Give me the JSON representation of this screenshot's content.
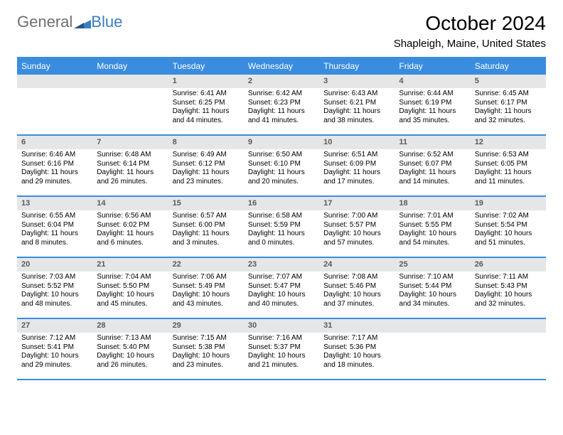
{
  "brand": {
    "general": "General",
    "blue": "Blue"
  },
  "title": "October 2024",
  "location": "Shapleigh, Maine, United States",
  "colors": {
    "header_bg": "#3a8dde",
    "header_fg": "#ffffff",
    "daynum_bg": "#e5e6e7",
    "border": "#3a8dde",
    "logo_gray": "#6d6e71",
    "logo_blue": "#3a7ebf"
  },
  "dayHeaders": [
    "Sunday",
    "Monday",
    "Tuesday",
    "Wednesday",
    "Thursday",
    "Friday",
    "Saturday"
  ],
  "weeks": [
    [
      null,
      null,
      {
        "num": "1",
        "sunrise": "Sunrise: 6:41 AM",
        "sunset": "Sunset: 6:25 PM",
        "daylight": "Daylight: 11 hours and 44 minutes."
      },
      {
        "num": "2",
        "sunrise": "Sunrise: 6:42 AM",
        "sunset": "Sunset: 6:23 PM",
        "daylight": "Daylight: 11 hours and 41 minutes."
      },
      {
        "num": "3",
        "sunrise": "Sunrise: 6:43 AM",
        "sunset": "Sunset: 6:21 PM",
        "daylight": "Daylight: 11 hours and 38 minutes."
      },
      {
        "num": "4",
        "sunrise": "Sunrise: 6:44 AM",
        "sunset": "Sunset: 6:19 PM",
        "daylight": "Daylight: 11 hours and 35 minutes."
      },
      {
        "num": "5",
        "sunrise": "Sunrise: 6:45 AM",
        "sunset": "Sunset: 6:17 PM",
        "daylight": "Daylight: 11 hours and 32 minutes."
      }
    ],
    [
      {
        "num": "6",
        "sunrise": "Sunrise: 6:46 AM",
        "sunset": "Sunset: 6:16 PM",
        "daylight": "Daylight: 11 hours and 29 minutes."
      },
      {
        "num": "7",
        "sunrise": "Sunrise: 6:48 AM",
        "sunset": "Sunset: 6:14 PM",
        "daylight": "Daylight: 11 hours and 26 minutes."
      },
      {
        "num": "8",
        "sunrise": "Sunrise: 6:49 AM",
        "sunset": "Sunset: 6:12 PM",
        "daylight": "Daylight: 11 hours and 23 minutes."
      },
      {
        "num": "9",
        "sunrise": "Sunrise: 6:50 AM",
        "sunset": "Sunset: 6:10 PM",
        "daylight": "Daylight: 11 hours and 20 minutes."
      },
      {
        "num": "10",
        "sunrise": "Sunrise: 6:51 AM",
        "sunset": "Sunset: 6:09 PM",
        "daylight": "Daylight: 11 hours and 17 minutes."
      },
      {
        "num": "11",
        "sunrise": "Sunrise: 6:52 AM",
        "sunset": "Sunset: 6:07 PM",
        "daylight": "Daylight: 11 hours and 14 minutes."
      },
      {
        "num": "12",
        "sunrise": "Sunrise: 6:53 AM",
        "sunset": "Sunset: 6:05 PM",
        "daylight": "Daylight: 11 hours and 11 minutes."
      }
    ],
    [
      {
        "num": "13",
        "sunrise": "Sunrise: 6:55 AM",
        "sunset": "Sunset: 6:04 PM",
        "daylight": "Daylight: 11 hours and 8 minutes."
      },
      {
        "num": "14",
        "sunrise": "Sunrise: 6:56 AM",
        "sunset": "Sunset: 6:02 PM",
        "daylight": "Daylight: 11 hours and 6 minutes."
      },
      {
        "num": "15",
        "sunrise": "Sunrise: 6:57 AM",
        "sunset": "Sunset: 6:00 PM",
        "daylight": "Daylight: 11 hours and 3 minutes."
      },
      {
        "num": "16",
        "sunrise": "Sunrise: 6:58 AM",
        "sunset": "Sunset: 5:59 PM",
        "daylight": "Daylight: 11 hours and 0 minutes."
      },
      {
        "num": "17",
        "sunrise": "Sunrise: 7:00 AM",
        "sunset": "Sunset: 5:57 PM",
        "daylight": "Daylight: 10 hours and 57 minutes."
      },
      {
        "num": "18",
        "sunrise": "Sunrise: 7:01 AM",
        "sunset": "Sunset: 5:55 PM",
        "daylight": "Daylight: 10 hours and 54 minutes."
      },
      {
        "num": "19",
        "sunrise": "Sunrise: 7:02 AM",
        "sunset": "Sunset: 5:54 PM",
        "daylight": "Daylight: 10 hours and 51 minutes."
      }
    ],
    [
      {
        "num": "20",
        "sunrise": "Sunrise: 7:03 AM",
        "sunset": "Sunset: 5:52 PM",
        "daylight": "Daylight: 10 hours and 48 minutes."
      },
      {
        "num": "21",
        "sunrise": "Sunrise: 7:04 AM",
        "sunset": "Sunset: 5:50 PM",
        "daylight": "Daylight: 10 hours and 45 minutes."
      },
      {
        "num": "22",
        "sunrise": "Sunrise: 7:06 AM",
        "sunset": "Sunset: 5:49 PM",
        "daylight": "Daylight: 10 hours and 43 minutes."
      },
      {
        "num": "23",
        "sunrise": "Sunrise: 7:07 AM",
        "sunset": "Sunset: 5:47 PM",
        "daylight": "Daylight: 10 hours and 40 minutes."
      },
      {
        "num": "24",
        "sunrise": "Sunrise: 7:08 AM",
        "sunset": "Sunset: 5:46 PM",
        "daylight": "Daylight: 10 hours and 37 minutes."
      },
      {
        "num": "25",
        "sunrise": "Sunrise: 7:10 AM",
        "sunset": "Sunset: 5:44 PM",
        "daylight": "Daylight: 10 hours and 34 minutes."
      },
      {
        "num": "26",
        "sunrise": "Sunrise: 7:11 AM",
        "sunset": "Sunset: 5:43 PM",
        "daylight": "Daylight: 10 hours and 32 minutes."
      }
    ],
    [
      {
        "num": "27",
        "sunrise": "Sunrise: 7:12 AM",
        "sunset": "Sunset: 5:41 PM",
        "daylight": "Daylight: 10 hours and 29 minutes."
      },
      {
        "num": "28",
        "sunrise": "Sunrise: 7:13 AM",
        "sunset": "Sunset: 5:40 PM",
        "daylight": "Daylight: 10 hours and 26 minutes."
      },
      {
        "num": "29",
        "sunrise": "Sunrise: 7:15 AM",
        "sunset": "Sunset: 5:38 PM",
        "daylight": "Daylight: 10 hours and 23 minutes."
      },
      {
        "num": "30",
        "sunrise": "Sunrise: 7:16 AM",
        "sunset": "Sunset: 5:37 PM",
        "daylight": "Daylight: 10 hours and 21 minutes."
      },
      {
        "num": "31",
        "sunrise": "Sunrise: 7:17 AM",
        "sunset": "Sunset: 5:36 PM",
        "daylight": "Daylight: 10 hours and 18 minutes."
      },
      null,
      null
    ]
  ]
}
